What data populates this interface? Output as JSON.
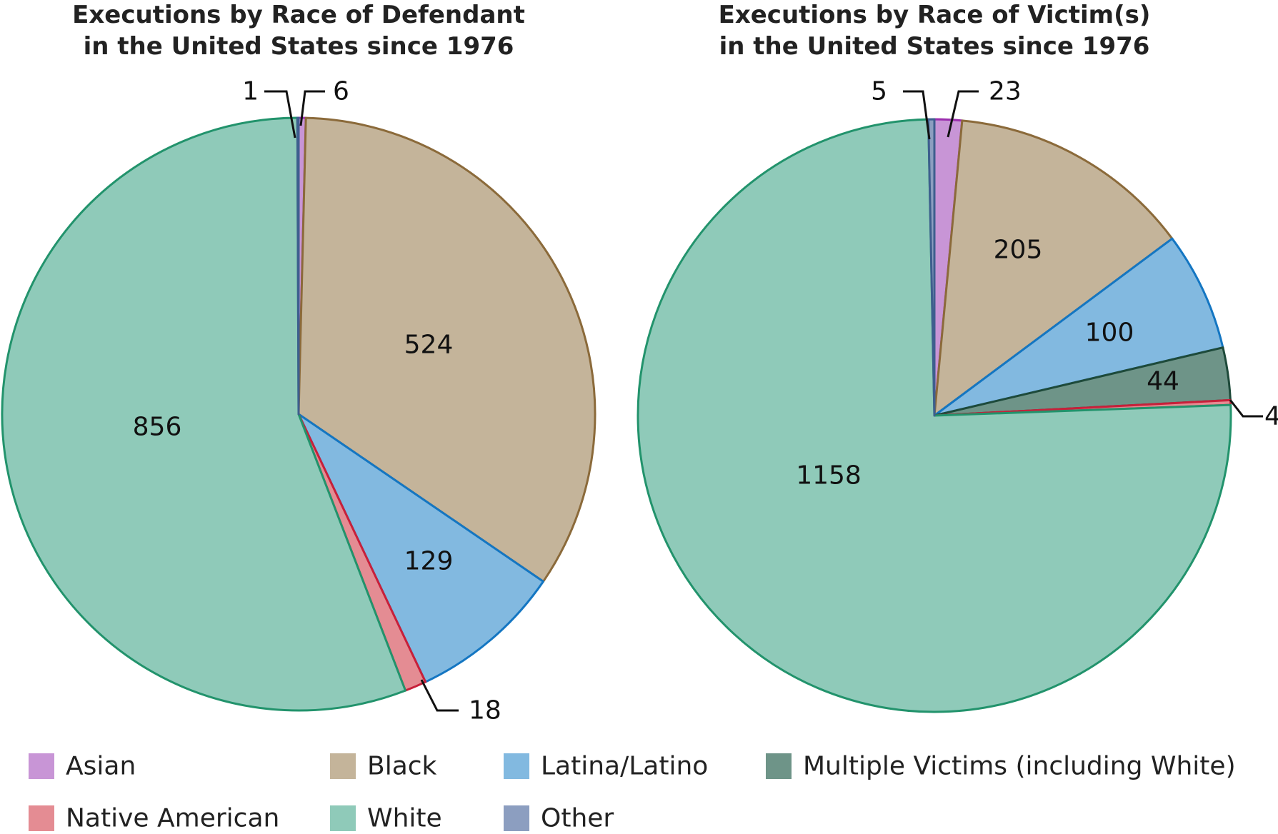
{
  "colors": {
    "Asian": {
      "fill": "#C895D6",
      "stroke": "#9B2FAE"
    },
    "Black": {
      "fill": "#C4B49A",
      "stroke": "#8B6A3A"
    },
    "Latina/Latino": {
      "fill": "#82B9E0",
      "stroke": "#1476C2"
    },
    "Multiple Victims (including White)": {
      "fill": "#6E9488",
      "stroke": "#1E4A3A"
    },
    "Native American": {
      "fill": "#E48C93",
      "stroke": "#C8203A"
    },
    "White": {
      "fill": "#8FCAB9",
      "stroke": "#22936C"
    },
    "Other": {
      "fill": "#8C9EC0",
      "stroke": "#3E5E8E"
    }
  },
  "legend": [
    "Asian",
    "Black",
    "Latina/Latino",
    "Multiple Victims (including White)",
    "Native American",
    "White",
    "Other"
  ],
  "chart_data": [
    {
      "type": "pie",
      "title": "Executions by Race of Defendant in the United States since 1976",
      "title_lines": [
        "Executions by Race of Defendant",
        "in the United States since 1976"
      ],
      "slices": [
        {
          "label": "Asian",
          "value": 6
        },
        {
          "label": "Black",
          "value": 524
        },
        {
          "label": "Latina/Latino",
          "value": 129
        },
        {
          "label": "Native American",
          "value": 18
        },
        {
          "label": "White",
          "value": 856
        },
        {
          "label": "Other",
          "value": 1
        }
      ]
    },
    {
      "type": "pie",
      "title": "Executions by Race of Victim(s) in the United States since 1976",
      "title_lines": [
        "Executions by Race of Victim(s)",
        "in the United States since 1976"
      ],
      "slices": [
        {
          "label": "Asian",
          "value": 23
        },
        {
          "label": "Black",
          "value": 205
        },
        {
          "label": "Latina/Latino",
          "value": 100
        },
        {
          "label": "Multiple Victims (including White)",
          "value": 44
        },
        {
          "label": "Native American",
          "value": 4
        },
        {
          "label": "White",
          "value": 1158
        },
        {
          "label": "Other",
          "value": 5
        }
      ]
    }
  ]
}
